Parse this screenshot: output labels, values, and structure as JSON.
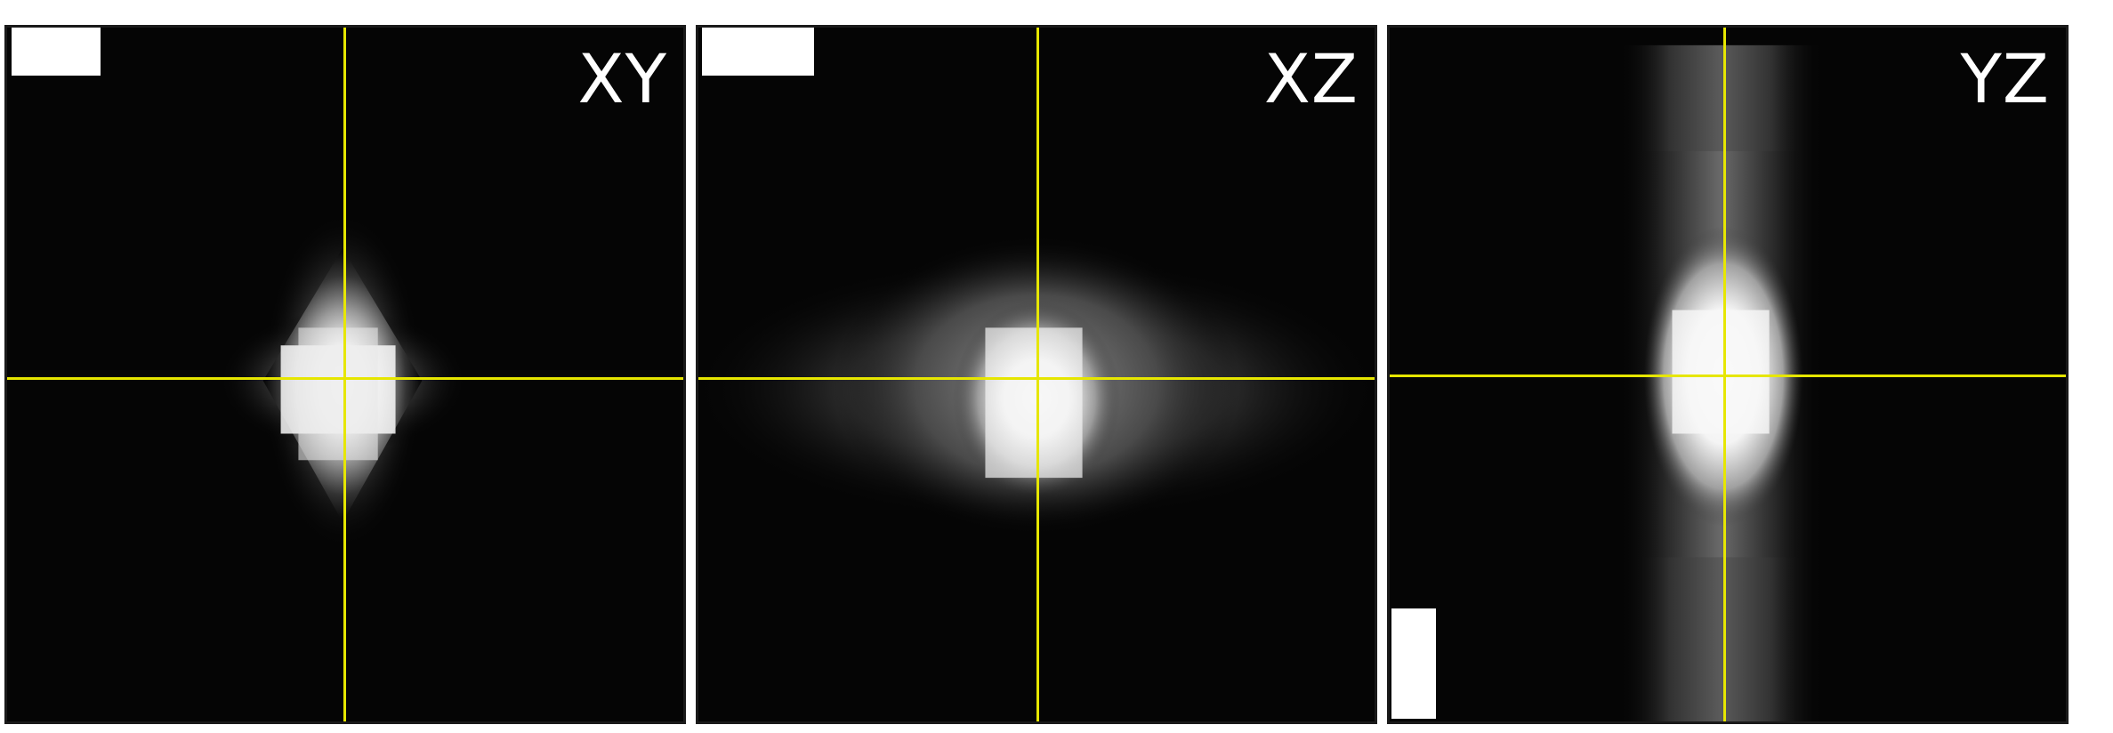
{
  "panels": [
    {
      "id": "xy",
      "label": "XY"
    },
    {
      "id": "xz",
      "label": "XZ"
    },
    {
      "id": "yz",
      "label": "YZ"
    }
  ],
  "colors": {
    "background": "#050505",
    "crosshair": "#e6e600",
    "label": "#ffffff",
    "scalebar": "#ffffff"
  }
}
